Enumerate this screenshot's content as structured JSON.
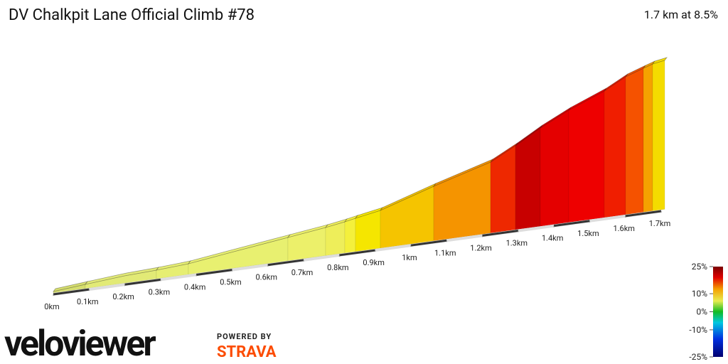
{
  "chart_data": {
    "type": "elevation-profile",
    "title": "DV Chalkpit Lane Official Climb #78",
    "summary": "1.7 km at 8.5%",
    "xlim": [
      0,
      1.7
    ],
    "xticks": [
      {
        "value": 0,
        "label": "0km"
      },
      {
        "value": 0.1,
        "label": "0.1km"
      },
      {
        "value": 0.2,
        "label": "0.2km"
      },
      {
        "value": 0.3,
        "label": "0.3km"
      },
      {
        "value": 0.4,
        "label": "0.4km"
      },
      {
        "value": 0.5,
        "label": "0.5km"
      },
      {
        "value": 0.6,
        "label": "0.6km"
      },
      {
        "value": 0.7,
        "label": "0.7km"
      },
      {
        "value": 0.8,
        "label": "0.8km"
      },
      {
        "value": 0.9,
        "label": "0.9km"
      },
      {
        "value": 1,
        "label": "1km"
      },
      {
        "value": 1.1,
        "label": "1.1km"
      },
      {
        "value": 1.2,
        "label": "1.2km"
      },
      {
        "value": 1.3,
        "label": "1.3km"
      },
      {
        "value": 1.4,
        "label": "1.4km"
      },
      {
        "value": 1.5,
        "label": "1.5km"
      },
      {
        "value": 1.6,
        "label": "1.6km"
      },
      {
        "value": 1.7,
        "label": "1.7km"
      }
    ],
    "colorbar": {
      "lim": [
        -25,
        25
      ],
      "ticks": [
        {
          "value": 25,
          "label": "25%"
        },
        {
          "value": 10,
          "label": "10%"
        },
        {
          "value": 0,
          "label": "0%"
        },
        {
          "value": -10,
          "label": "-10%"
        },
        {
          "value": -25,
          "label": "-25%"
        }
      ]
    }
  },
  "branding": {
    "logo": "veloviewer",
    "powered": "POWERED BY",
    "strava": "STRAVA"
  }
}
